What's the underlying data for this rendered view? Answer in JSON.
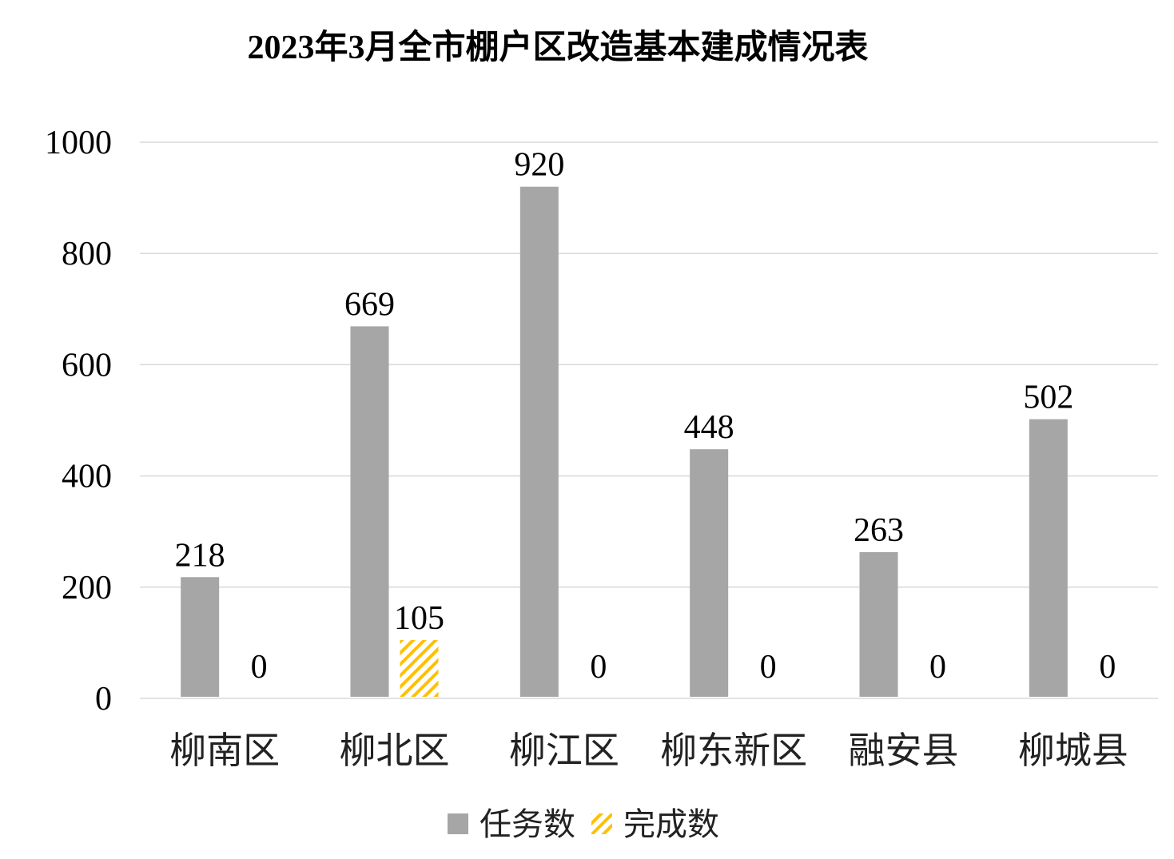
{
  "chart_data": {
    "type": "bar",
    "title": "2023年3月全市棚户区改造基本建成情况表",
    "categories": [
      "柳南区",
      "柳北区",
      "柳江区",
      "柳东新区",
      "融安县",
      "柳城县"
    ],
    "series": [
      {
        "name": "任务数",
        "values": [
          218,
          669,
          920,
          448,
          263,
          502
        ],
        "color": "#a6a6a6",
        "pattern": "solid"
      },
      {
        "name": "完成数",
        "values": [
          0,
          105,
          0,
          0,
          0,
          0
        ],
        "color": "#ffc000",
        "pattern": "diagonal-hatch"
      }
    ],
    "yticks": [
      0,
      200,
      400,
      600,
      800,
      1000
    ],
    "ylim": [
      0,
      1000
    ],
    "xlabel": "",
    "ylabel": "",
    "grid": true,
    "data_labels": true,
    "legend": "bottom"
  }
}
